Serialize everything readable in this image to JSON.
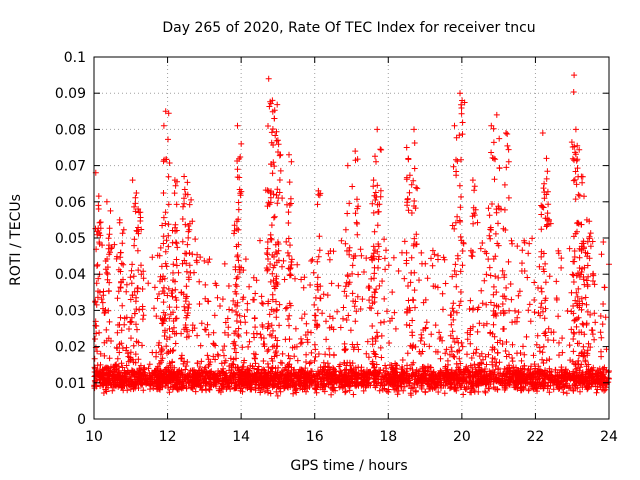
{
  "chart_data": {
    "type": "scatter",
    "title": "Day 265 of 2020, Rate Of TEC Index for receiver tncu",
    "xlabel": "GPS time / hours",
    "ylabel": "ROTI / TECUs",
    "xlim": [
      10,
      24
    ],
    "ylim": [
      0,
      0.1
    ],
    "x_ticks": [
      "10",
      "12",
      "14",
      "16",
      "18",
      "20",
      "22",
      "24"
    ],
    "y_ticks": [
      "0",
      "0.01",
      "0.02",
      "0.03",
      "0.04",
      "0.05",
      "0.06",
      "0.07",
      "0.08",
      "0.09",
      "0.1"
    ],
    "grid": true,
    "marker": "+",
    "color": "#ff0000",
    "series": [
      {
        "peaks": [
          {
            "x": 10.05,
            "y": 0.068
          },
          {
            "x": 10.12,
            "y": 0.059
          },
          {
            "x": 10.35,
            "y": 0.06
          },
          {
            "x": 10.7,
            "y": 0.055
          },
          {
            "x": 11.05,
            "y": 0.066
          },
          {
            "x": 11.2,
            "y": 0.058
          },
          {
            "x": 11.9,
            "y": 0.081
          },
          {
            "x": 11.95,
            "y": 0.085
          },
          {
            "x": 12.2,
            "y": 0.066
          },
          {
            "x": 12.45,
            "y": 0.067
          },
          {
            "x": 12.55,
            "y": 0.062
          },
          {
            "x": 13.9,
            "y": 0.081
          },
          {
            "x": 13.9,
            "y": 0.069
          },
          {
            "x": 14.75,
            "y": 0.094
          },
          {
            "x": 14.85,
            "y": 0.088
          },
          {
            "x": 14.9,
            "y": 0.083
          },
          {
            "x": 15.0,
            "y": 0.077
          },
          {
            "x": 15.3,
            "y": 0.073
          },
          {
            "x": 16.1,
            "y": 0.063
          },
          {
            "x": 16.9,
            "y": 0.07
          },
          {
            "x": 17.1,
            "y": 0.074
          },
          {
            "x": 17.7,
            "y": 0.08
          },
          {
            "x": 17.6,
            "y": 0.066
          },
          {
            "x": 18.5,
            "y": 0.075
          },
          {
            "x": 18.7,
            "y": 0.08
          },
          {
            "x": 19.8,
            "y": 0.081
          },
          {
            "x": 19.95,
            "y": 0.09
          },
          {
            "x": 20.3,
            "y": 0.066
          },
          {
            "x": 20.8,
            "y": 0.081
          },
          {
            "x": 20.95,
            "y": 0.084
          },
          {
            "x": 21.2,
            "y": 0.079
          },
          {
            "x": 22.2,
            "y": 0.079
          },
          {
            "x": 22.3,
            "y": 0.072
          },
          {
            "x": 23.05,
            "y": 0.095
          },
          {
            "x": 23.1,
            "y": 0.08
          },
          {
            "x": 23.25,
            "y": 0.067
          },
          {
            "x": 23.4,
            "y": 0.055
          }
        ],
        "dense_band": {
          "x_range": [
            10,
            24
          ],
          "y_range": [
            0.003,
            0.022
          ],
          "typical_y": 0.011
        }
      }
    ]
  }
}
